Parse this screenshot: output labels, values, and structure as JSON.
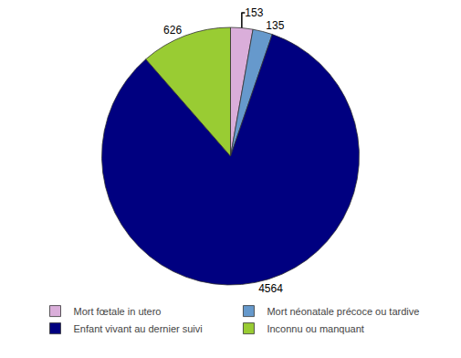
{
  "chart_data": {
    "type": "pie",
    "categories": [
      "Mort fœtale in utero",
      "Mort néonatale précoce ou tardive",
      "Enfant vivant au dernier suivi",
      "Inconnu ou manquant"
    ],
    "values": [
      153,
      135,
      4564,
      626
    ],
    "colors": [
      "#daaeda",
      "#6699cc",
      "#000080",
      "#99cc33"
    ],
    "data_labels": true,
    "legend": "bottom"
  }
}
